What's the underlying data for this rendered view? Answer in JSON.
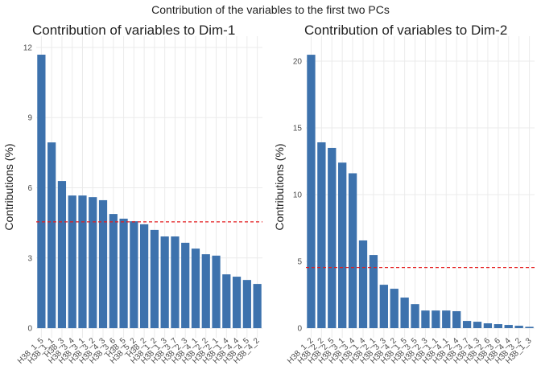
{
  "title": "Contribution of the variables to the first two PCs",
  "chart_data": [
    {
      "type": "bar",
      "title": "Contribution of variables to Dim-1",
      "y_label": "Contributions (%)",
      "categories": [
        "H38_1_5",
        "H38_1_1",
        "H38_3",
        "H38_3_4",
        "H38_3_1",
        "H38_3_2",
        "H38_4_3",
        "H38_3_6",
        "H38_5",
        "H38_5_2",
        "H38_2",
        "H38_1_2",
        "H38_1_3",
        "H38_3_7",
        "H38_2_3",
        "H38_4_1",
        "H38_2_2",
        "H38_2_1",
        "H38_1_4",
        "H38_4_4",
        "H38_4_5",
        "H38_4_2"
      ],
      "values": [
        11.69,
        7.94,
        6.29,
        5.67,
        5.67,
        5.6,
        5.47,
        4.88,
        4.68,
        4.57,
        4.44,
        4.2,
        3.92,
        3.92,
        3.65,
        3.4,
        3.16,
        3.1,
        2.3,
        2.2,
        2.06,
        1.89
      ],
      "color": "#3d72ad",
      "reference_line": 4.545,
      "reference_color": "#e41a1c",
      "ylim": [
        -0.41,
        12.48
      ],
      "yticks": [
        0,
        3,
        6,
        9,
        12
      ],
      "grid": true
    },
    {
      "type": "bar",
      "title": "Contribution of variables to Dim-2",
      "y_label": "Contributions (%)",
      "categories": [
        "H38_1_2",
        "H38_2_2",
        "H38_2_5",
        "H38_3_1",
        "H38_3_4",
        "H38_1_4",
        "H38_2_1",
        "H38_3_3",
        "H38_4_2",
        "H38_1_5",
        "H38_3_5",
        "H38_2_3",
        "H38_1_1",
        "H38_4_1",
        "H38_2_4",
        "H38_3_7",
        "H38_4_3",
        "H38_2_6",
        "H38_3_6",
        "H38_4_4",
        "H38_3_2",
        "H38_1_3"
      ],
      "values": [
        20.48,
        13.92,
        13.5,
        12.4,
        11.6,
        6.57,
        5.48,
        3.25,
        2.95,
        2.29,
        1.8,
        1.32,
        1.32,
        1.32,
        1.27,
        0.54,
        0.48,
        0.36,
        0.3,
        0.24,
        0.18,
        0.1
      ],
      "color": "#3d72ad",
      "reference_line": 4.545,
      "reference_color": "#e41a1c",
      "ylim": [
        -0.72,
        21.87
      ],
      "yticks": [
        0,
        5,
        10,
        15,
        20
      ],
      "grid": true
    }
  ]
}
